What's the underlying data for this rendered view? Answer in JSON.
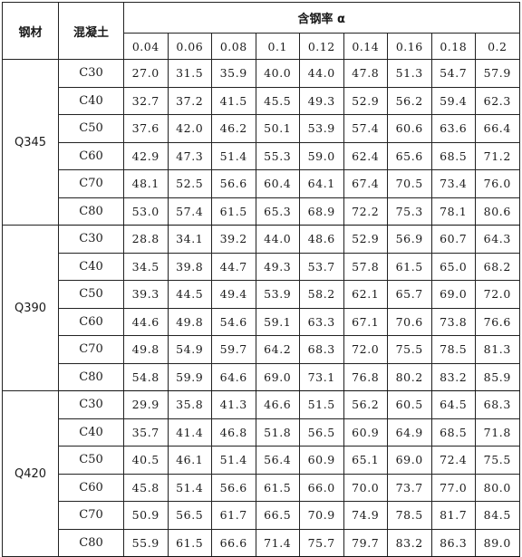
{
  "table": {
    "header": {
      "steel": "钢材",
      "concrete": "混凝土",
      "ratio_title": "含钢率 α",
      "ratios": [
        "0.04",
        "0.06",
        "0.08",
        "0.1",
        "0.12",
        "0.14",
        "0.16",
        "0.18",
        "0.2"
      ]
    },
    "groups": [
      {
        "steel": "Q345",
        "rows": [
          {
            "concrete": "C30",
            "values": [
              "27.0",
              "31.5",
              "35.9",
              "40.0",
              "44.0",
              "47.8",
              "51.3",
              "54.7",
              "57.9"
            ]
          },
          {
            "concrete": "C40",
            "values": [
              "32.7",
              "37.2",
              "41.5",
              "45.5",
              "49.3",
              "52.9",
              "56.2",
              "59.4",
              "62.3"
            ]
          },
          {
            "concrete": "C50",
            "values": [
              "37.6",
              "42.0",
              "46.2",
              "50.1",
              "53.9",
              "57.4",
              "60.6",
              "63.6",
              "66.4"
            ]
          },
          {
            "concrete": "C60",
            "values": [
              "42.9",
              "47.3",
              "51.4",
              "55.3",
              "59.0",
              "62.4",
              "65.6",
              "68.5",
              "71.2"
            ]
          },
          {
            "concrete": "C70",
            "values": [
              "48.1",
              "52.5",
              "56.6",
              "60.4",
              "64.1",
              "67.4",
              "70.5",
              "73.4",
              "76.0"
            ]
          },
          {
            "concrete": "C80",
            "values": [
              "53.0",
              "57.4",
              "61.5",
              "65.3",
              "68.9",
              "72.2",
              "75.3",
              "78.1",
              "80.6"
            ]
          }
        ]
      },
      {
        "steel": "Q390",
        "rows": [
          {
            "concrete": "C30",
            "values": [
              "28.8",
              "34.1",
              "39.2",
              "44.0",
              "48.6",
              "52.9",
              "56.9",
              "60.7",
              "64.3"
            ]
          },
          {
            "concrete": "C40",
            "values": [
              "34.5",
              "39.8",
              "44.7",
              "49.3",
              "53.7",
              "57.8",
              "61.5",
              "65.0",
              "68.2"
            ]
          },
          {
            "concrete": "C50",
            "values": [
              "39.3",
              "44.5",
              "49.4",
              "53.9",
              "58.2",
              "62.1",
              "65.7",
              "69.0",
              "72.0"
            ]
          },
          {
            "concrete": "C60",
            "values": [
              "44.6",
              "49.8",
              "54.6",
              "59.1",
              "63.3",
              "67.1",
              "70.6",
              "73.8",
              "76.6"
            ]
          },
          {
            "concrete": "C70",
            "values": [
              "49.8",
              "54.9",
              "59.7",
              "64.2",
              "68.3",
              "72.0",
              "75.5",
              "78.5",
              "81.3"
            ]
          },
          {
            "concrete": "C80",
            "values": [
              "54.8",
              "59.9",
              "64.6",
              "69.0",
              "73.1",
              "76.8",
              "80.2",
              "83.2",
              "85.9"
            ]
          }
        ]
      },
      {
        "steel": "Q420",
        "rows": [
          {
            "concrete": "C30",
            "values": [
              "29.9",
              "35.8",
              "41.3",
              "46.6",
              "51.5",
              "56.2",
              "60.5",
              "64.5",
              "68.3"
            ]
          },
          {
            "concrete": "C40",
            "values": [
              "35.7",
              "41.4",
              "46.8",
              "51.8",
              "56.5",
              "60.9",
              "64.9",
              "68.5",
              "71.8"
            ]
          },
          {
            "concrete": "C50",
            "values": [
              "40.5",
              "46.1",
              "51.4",
              "56.4",
              "60.9",
              "65.1",
              "69.0",
              "72.4",
              "75.5"
            ]
          },
          {
            "concrete": "C60",
            "values": [
              "45.8",
              "51.4",
              "56.6",
              "61.5",
              "66.0",
              "70.0",
              "73.7",
              "77.0",
              "80.0"
            ]
          },
          {
            "concrete": "C70",
            "values": [
              "50.9",
              "56.5",
              "61.7",
              "66.5",
              "70.9",
              "74.9",
              "78.5",
              "81.7",
              "84.5"
            ]
          },
          {
            "concrete": "C80",
            "values": [
              "55.9",
              "61.5",
              "66.6",
              "71.4",
              "75.7",
              "79.7",
              "83.2",
              "86.3",
              "89.0"
            ]
          }
        ]
      }
    ]
  }
}
